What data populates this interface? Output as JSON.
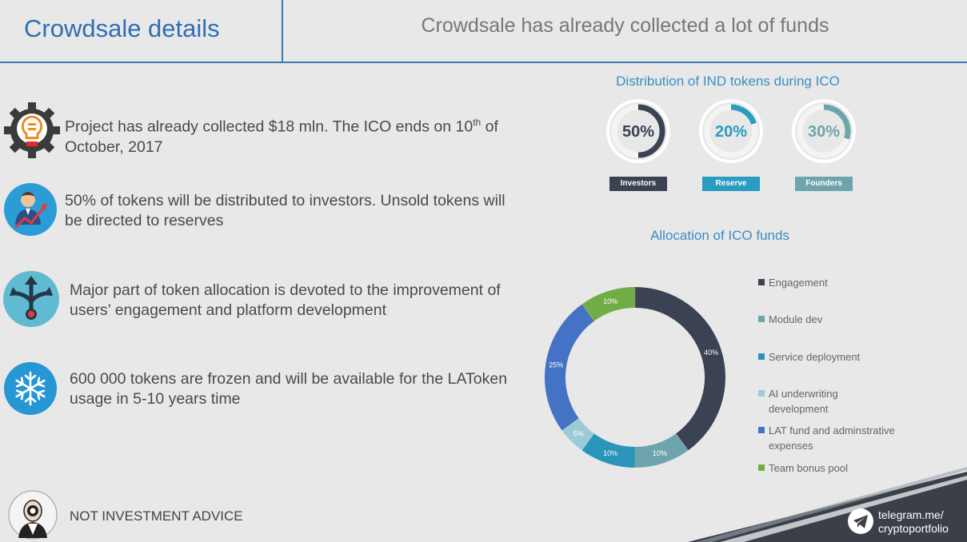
{
  "header": {
    "title": "Crowdsale details",
    "subtitle": "Crowdsale has already collected a lot of funds"
  },
  "facts": [
    {
      "icon": "lightbulb-gear-icon",
      "text_a": "Project has already collected $18 mln. The ICO ends on 10",
      "sup": "th",
      "text_b": " of",
      "text_c": "October, 2017"
    },
    {
      "icon": "investor-growth-icon",
      "line1": "50% of tokens will be distributed to investors. Unsold tokens will",
      "line2": "be directed to reserves"
    },
    {
      "icon": "split-arrows-icon",
      "line1": "Major part of token allocation is devoted to the improvement of",
      "line2": "users’ engagement and platform development"
    },
    {
      "icon": "snowflake-icon",
      "line1": "600 000 tokens are frozen and will be available for the LAToken",
      "line2": "usage in 5-10 years time"
    }
  ],
  "footer": {
    "disclaimer": "NOT INVESTMENT ADVICE",
    "telegram_line1": "telegram.me/",
    "telegram_line2": "cryptoportfolio"
  },
  "colors": {
    "engagement": "#3a4253",
    "module_dev": "#6ea5ad",
    "service_deployment": "#2a95b8",
    "ai_underwriting": "#9ccad6",
    "lat_fund": "#4472c4",
    "team_bonus": "#70ad47",
    "accent_blue": "#2f6fb1"
  },
  "chart_data": [
    {
      "type": "pie",
      "title": "Distribution of IND tokens during ICO",
      "series": [
        {
          "name": "Investors",
          "value": 50,
          "label": "50%",
          "color": "#3a4253"
        },
        {
          "name": "Reserve",
          "value": 20,
          "label": "20%",
          "color": "#2a9bc1"
        },
        {
          "name": "Founders",
          "value": 30,
          "label": "30%",
          "color": "#6ea5ad"
        }
      ]
    },
    {
      "type": "pie",
      "title": "Allocation of ICO funds",
      "legend": "right",
      "series": [
        {
          "name": "Engagement",
          "value": 40,
          "label": "40%",
          "color": "#3a4253"
        },
        {
          "name": "Module dev",
          "value": 10,
          "label": "10%",
          "color": "#6ea5ad"
        },
        {
          "name": "Service deployment",
          "value": 10,
          "label": "10%",
          "color": "#2a95b8"
        },
        {
          "name": "AI underwriting development",
          "value": 5,
          "label": "5%",
          "color": "#9ccad6"
        },
        {
          "name": "LAT fund and adminstrative expenses",
          "value": 25,
          "label": "25%",
          "color": "#4472c4"
        },
        {
          "name": "Team bonus pool",
          "value": 10,
          "label": "10%",
          "color": "#70ad47"
        }
      ],
      "legend_lines": [
        [
          "Engagement"
        ],
        [
          "Module dev"
        ],
        [
          "Service deployment"
        ],
        [
          "AI underwriting",
          "development"
        ],
        [
          "LAT fund and adminstrative",
          "expenses"
        ],
        [
          "Team bonus pool"
        ]
      ]
    }
  ]
}
